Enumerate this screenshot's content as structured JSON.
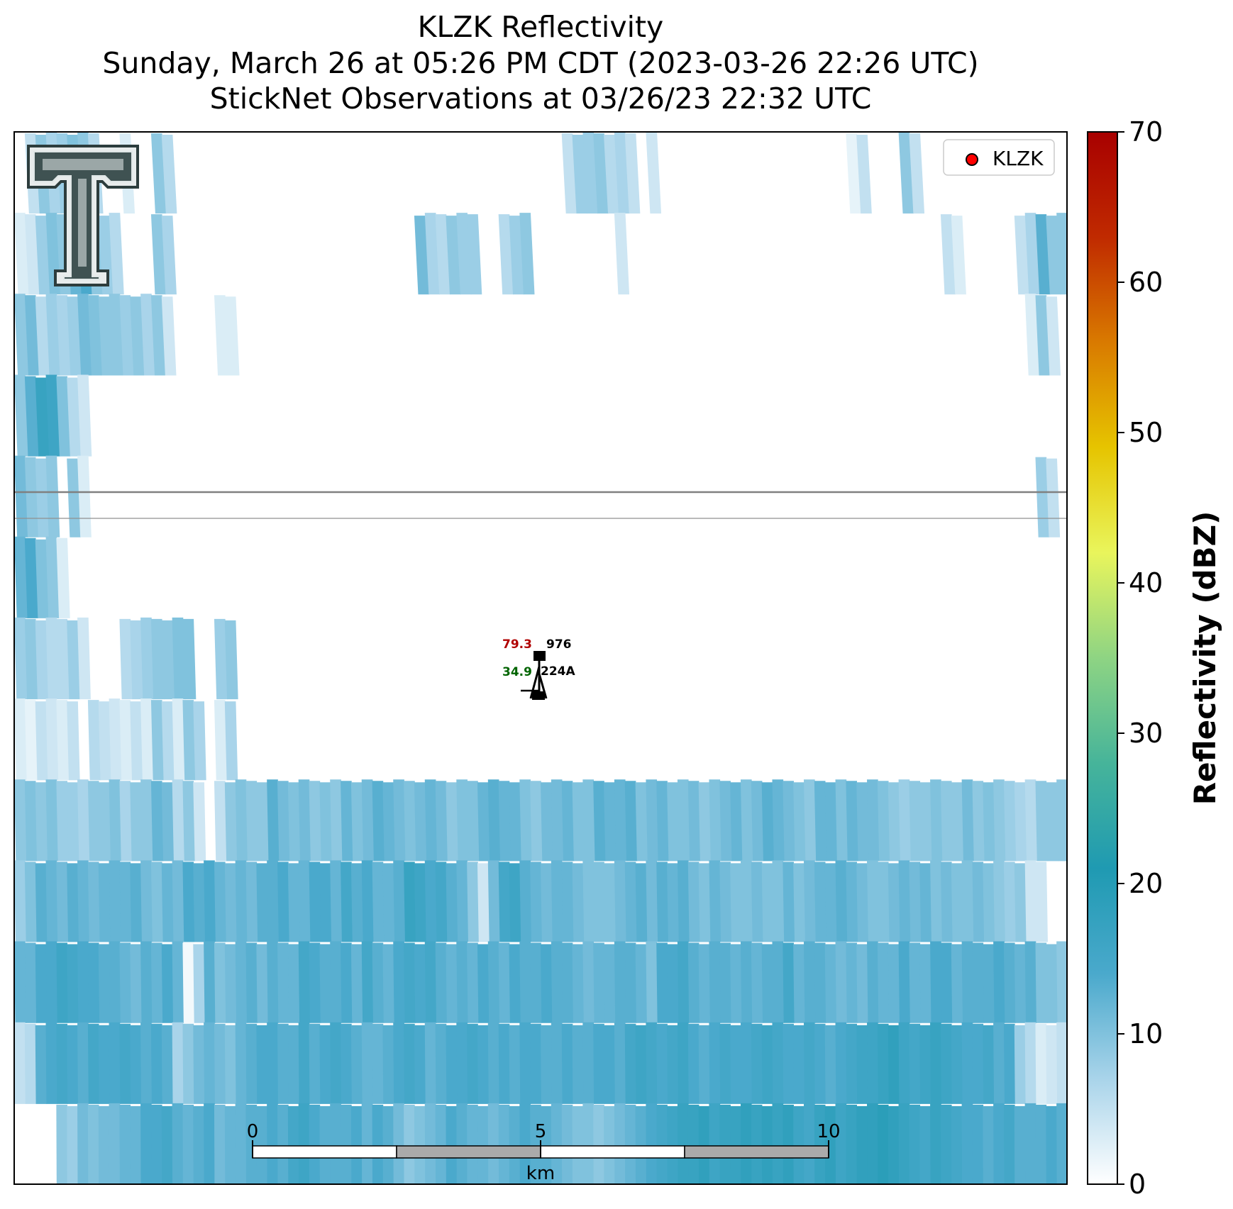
{
  "figure": {
    "title_line1": "KLZK Reflectivity",
    "title_line2": "Sunday, March 26 at 05:26 PM CDT (2023-03-26 22:26 UTC)",
    "title_line3": "StickNet Observations at 03/26/23 22:32 UTC"
  },
  "legend": {
    "label": "KLZK",
    "marker_color": "#ff0000"
  },
  "logo": {
    "name": "texas-tech-double-t-logo"
  },
  "scale_bar": {
    "unit_label": "km",
    "ticks": [
      "0",
      "5",
      "10"
    ]
  },
  "station": {
    "temperature": "79.3",
    "temperature_color": "#b00000",
    "pressure": "976",
    "dewpoint": "34.9",
    "dewpoint_color": "#006400",
    "station_id": "224A"
  },
  "chart_data": {
    "type": "heatmap",
    "title": "KLZK Reflectivity",
    "colorbar": {
      "label": "Reflectivity (dBZ)",
      "range": [
        0,
        70
      ],
      "ticks": [
        "0",
        "10",
        "20",
        "30",
        "40",
        "50",
        "60",
        "70"
      ],
      "colors": [
        "#ffffff",
        "#a9d4ea",
        "#4aa9cc",
        "#1f9ab2",
        "#46b49a",
        "#8ed483",
        "#e9f55c",
        "#e6c400",
        "#d97a00",
        "#c02a00",
        "#a80000"
      ]
    },
    "description_rows_top_to_bottom": "reflectivity field mostly 0-20 dBZ; scattered light echoes in upper half, stronger 8-20 dBZ band across lower third",
    "rows": [
      [
        0,
        5,
        9,
        7,
        8,
        10,
        9,
        6,
        0,
        0,
        3,
        0,
        0,
        9,
        6,
        0,
        0,
        0,
        0,
        0,
        0,
        0,
        0,
        0,
        0,
        0,
        0,
        0,
        0,
        0,
        0,
        0,
        0,
        0,
        0,
        0,
        0,
        0,
        0,
        0,
        0,
        0,
        0,
        0,
        0,
        0,
        0,
        0,
        0,
        0,
        0,
        0,
        5,
        8,
        8,
        9,
        6,
        7,
        5,
        0,
        4,
        0,
        0,
        0,
        0,
        0,
        0,
        0,
        0,
        0,
        0,
        0,
        0,
        0,
        0,
        0,
        0,
        0,
        0,
        2,
        5,
        0,
        0,
        0,
        9,
        5,
        0,
        0,
        0,
        0,
        0,
        0,
        0,
        0,
        0,
        0,
        0,
        0,
        0,
        0
      ],
      [
        3,
        4,
        8,
        10,
        9,
        12,
        14,
        9,
        8,
        6,
        0,
        0,
        0,
        9,
        7,
        0,
        0,
        0,
        0,
        0,
        0,
        0,
        0,
        0,
        0,
        0,
        0,
        0,
        0,
        0,
        0,
        0,
        0,
        0,
        0,
        0,
        0,
        0,
        11,
        7,
        6,
        9,
        8,
        8,
        0,
        0,
        6,
        8,
        9,
        0,
        0,
        0,
        0,
        0,
        0,
        0,
        0,
        4,
        0,
        0,
        0,
        0,
        0,
        0,
        0,
        0,
        0,
        0,
        0,
        0,
        0,
        0,
        0,
        0,
        0,
        0,
        0,
        0,
        0,
        0,
        0,
        0,
        0,
        0,
        0,
        0,
        0,
        0,
        5,
        3,
        0,
        0,
        0,
        0,
        0,
        5,
        7,
        13,
        9,
        9
      ],
      [
        9,
        11,
        6,
        8,
        7,
        8,
        11,
        10,
        9,
        9,
        8,
        9,
        7,
        9,
        4,
        0,
        0,
        0,
        0,
        3,
        3,
        0,
        0,
        0,
        0,
        0,
        0,
        0,
        0,
        0,
        0,
        0,
        0,
        0,
        0,
        0,
        0,
        0,
        0,
        0,
        0,
        0,
        0,
        0,
        0,
        0,
        0,
        0,
        0,
        0,
        0,
        0,
        0,
        0,
        0,
        0,
        0,
        0,
        0,
        0,
        0,
        0,
        0,
        0,
        0,
        0,
        0,
        0,
        0,
        0,
        0,
        0,
        0,
        0,
        0,
        0,
        0,
        0,
        0,
        0,
        0,
        0,
        0,
        0,
        0,
        0,
        0,
        0,
        0,
        0,
        0,
        0,
        0,
        0,
        0,
        0,
        3,
        9,
        4,
        0
      ],
      [
        9,
        13,
        17,
        16,
        10,
        6,
        4,
        0,
        0,
        0,
        0,
        0,
        0,
        0,
        0,
        0,
        0,
        0,
        0,
        0,
        0,
        0,
        0,
        0,
        0,
        0,
        0,
        0,
        0,
        0,
        0,
        0,
        0,
        0,
        0,
        0,
        0,
        0,
        0,
        0,
        0,
        0,
        0,
        0,
        0,
        0,
        0,
        0,
        0,
        0,
        0,
        0,
        0,
        0,
        0,
        0,
        0,
        0,
        0,
        0,
        0,
        0,
        0,
        0,
        0,
        0,
        0,
        0,
        0,
        0,
        0,
        0,
        0,
        0,
        0,
        0,
        0,
        0,
        0,
        0,
        0,
        0,
        0,
        0,
        0,
        0,
        0,
        0,
        0,
        0,
        0,
        0,
        0,
        0,
        0,
        0,
        0,
        0,
        0,
        0
      ],
      [
        11,
        9,
        8,
        9,
        0,
        9,
        3,
        0,
        0,
        0,
        0,
        0,
        0,
        0,
        0,
        0,
        0,
        0,
        0,
        0,
        0,
        0,
        0,
        0,
        0,
        0,
        0,
        0,
        0,
        0,
        0,
        0,
        0,
        0,
        0,
        0,
        0,
        0,
        0,
        0,
        0,
        0,
        0,
        0,
        0,
        0,
        0,
        0,
        0,
        0,
        0,
        0,
        0,
        0,
        0,
        0,
        0,
        0,
        0,
        0,
        0,
        0,
        0,
        0,
        0,
        0,
        0,
        0,
        0,
        0,
        0,
        0,
        0,
        0,
        0,
        0,
        0,
        0,
        0,
        0,
        0,
        0,
        0,
        0,
        0,
        0,
        0,
        0,
        0,
        0,
        0,
        0,
        0,
        0,
        0,
        0,
        0,
        8,
        5,
        0
      ],
      [
        12,
        14,
        10,
        9,
        3,
        0,
        0,
        0,
        0,
        0,
        0,
        0,
        0,
        0,
        0,
        0,
        0,
        0,
        0,
        0,
        0,
        0,
        0,
        0,
        0,
        0,
        0,
        0,
        0,
        0,
        0,
        0,
        0,
        0,
        0,
        0,
        0,
        0,
        0,
        0,
        0,
        0,
        0,
        0,
        0,
        0,
        0,
        0,
        0,
        0,
        0,
        0,
        0,
        0,
        0,
        0,
        0,
        0,
        0,
        0,
        0,
        0,
        0,
        0,
        0,
        0,
        0,
        0,
        0,
        0,
        0,
        0,
        0,
        0,
        0,
        0,
        0,
        0,
        0,
        0,
        0,
        0,
        0,
        0,
        0,
        0,
        0,
        0,
        0,
        0,
        0,
        0,
        0,
        0,
        0,
        0,
        0,
        0,
        0,
        0
      ],
      [
        8,
        9,
        7,
        6,
        6,
        8,
        4,
        0,
        0,
        0,
        6,
        7,
        8,
        9,
        9,
        10,
        10,
        0,
        0,
        8,
        9,
        0,
        0,
        0,
        0,
        0,
        0,
        0,
        0,
        0,
        0,
        0,
        0,
        0,
        0,
        0,
        0,
        0,
        0,
        0,
        0,
        0,
        0,
        0,
        0,
        0,
        0,
        0,
        0,
        0,
        0,
        0,
        0,
        0,
        0,
        0,
        0,
        0,
        0,
        0,
        0,
        0,
        0,
        0,
        0,
        0,
        0,
        0,
        0,
        0,
        0,
        0,
        0,
        0,
        0,
        0,
        0,
        0,
        0,
        0,
        0,
        0,
        0,
        0,
        0,
        0,
        0,
        0,
        0,
        0,
        0,
        0,
        0,
        0,
        0,
        0,
        0,
        0,
        0,
        0
      ],
      [
        3,
        2,
        5,
        4,
        3,
        5,
        0,
        6,
        5,
        4,
        3,
        5,
        3,
        9,
        6,
        3,
        9,
        7,
        0,
        3,
        7,
        0,
        0,
        0,
        0,
        0,
        0,
        0,
        0,
        0,
        0,
        0,
        0,
        0,
        0,
        0,
        0,
        0,
        0,
        0,
        0,
        0,
        0,
        0,
        0,
        0,
        0,
        0,
        0,
        0,
        0,
        0,
        0,
        0,
        0,
        0,
        0,
        0,
        0,
        0,
        0,
        0,
        0,
        0,
        0,
        0,
        0,
        0,
        0,
        0,
        0,
        0,
        0,
        0,
        0,
        0,
        0,
        0,
        0,
        0,
        0,
        0,
        0,
        0,
        0,
        0,
        0,
        0,
        0,
        0,
        0,
        0,
        0,
        0,
        0,
        0,
        0,
        0,
        0,
        0
      ],
      [
        9,
        10,
        9,
        10,
        8,
        8,
        7,
        9,
        9,
        10,
        7,
        9,
        9,
        12,
        11,
        6,
        9,
        4,
        0,
        5,
        9,
        10,
        9,
        9,
        13,
        11,
        10,
        11,
        9,
        10,
        9,
        12,
        10,
        11,
        13,
        12,
        11,
        10,
        11,
        12,
        11,
        9,
        10,
        10,
        12,
        13,
        12,
        12,
        10,
        9,
        11,
        11,
        12,
        10,
        10,
        13,
        12,
        12,
        13,
        10,
        11,
        12,
        10,
        10,
        11,
        9,
        10,
        11,
        12,
        10,
        11,
        13,
        12,
        11,
        10,
        9,
        12,
        12,
        10,
        12,
        11,
        11,
        10,
        9,
        8,
        9,
        9,
        10,
        9,
        9,
        11,
        9,
        10,
        9,
        8,
        7,
        6,
        9,
        9,
        9
      ],
      [
        8,
        10,
        13,
        12,
        11,
        13,
        12,
        11,
        12,
        12,
        12,
        13,
        11,
        10,
        12,
        11,
        14,
        13,
        14,
        12,
        11,
        12,
        11,
        13,
        13,
        14,
        12,
        12,
        14,
        14,
        12,
        15,
        13,
        14,
        12,
        12,
        13,
        17,
        16,
        14,
        15,
        13,
        12,
        9,
        4,
        11,
        15,
        16,
        13,
        12,
        11,
        12,
        12,
        11,
        10,
        10,
        10,
        11,
        12,
        13,
        11,
        13,
        12,
        13,
        11,
        10,
        12,
        11,
        10,
        10,
        11,
        10,
        10,
        12,
        10,
        11,
        12,
        12,
        13,
        12,
        11,
        10,
        10,
        11,
        12,
        11,
        12,
        10,
        11,
        10,
        10,
        11,
        10,
        9,
        8,
        9,
        4,
        4,
        0,
        0
      ],
      [
        12,
        12,
        14,
        14,
        16,
        15,
        14,
        14,
        13,
        13,
        12,
        11,
        13,
        12,
        14,
        12,
        1,
        7,
        13,
        10,
        11,
        12,
        13,
        11,
        13,
        12,
        12,
        15,
        14,
        13,
        13,
        14,
        12,
        15,
        13,
        12,
        14,
        15,
        14,
        15,
        13,
        12,
        13,
        12,
        14,
        13,
        12,
        14,
        13,
        13,
        14,
        13,
        13,
        12,
        11,
        12,
        12,
        13,
        13,
        12,
        10,
        14,
        14,
        15,
        13,
        12,
        13,
        13,
        12,
        13,
        12,
        13,
        13,
        15,
        12,
        13,
        13,
        12,
        11,
        12,
        11,
        13,
        12,
        12,
        14,
        12,
        12,
        14,
        14,
        12,
        13,
        13,
        13,
        14,
        13,
        12,
        13,
        10,
        10,
        9
      ],
      [
        5,
        6,
        13,
        14,
        15,
        14,
        13,
        15,
        14,
        14,
        15,
        14,
        13,
        14,
        13,
        7,
        9,
        11,
        12,
        11,
        10,
        12,
        13,
        14,
        14,
        13,
        13,
        15,
        13,
        14,
        15,
        14,
        13,
        12,
        12,
        13,
        14,
        15,
        14,
        12,
        13,
        14,
        14,
        15,
        14,
        13,
        14,
        13,
        14,
        14,
        13,
        13,
        14,
        13,
        13,
        14,
        14,
        13,
        15,
        16,
        15,
        14,
        15,
        16,
        14,
        13,
        14,
        15,
        14,
        14,
        15,
        16,
        15,
        14,
        14,
        15,
        14,
        13,
        14,
        15,
        16,
        16,
        17,
        18,
        16,
        15,
        16,
        17,
        16,
        15,
        14,
        14,
        15,
        13,
        14,
        8,
        6,
        3,
        4,
        5
      ],
      [
        0,
        0,
        0,
        0,
        9,
        8,
        11,
        10,
        11,
        11,
        12,
        12,
        14,
        14,
        15,
        13,
        12,
        13,
        14,
        11,
        12,
        12,
        13,
        13,
        14,
        13,
        15,
        16,
        14,
        13,
        13,
        13,
        14,
        12,
        14,
        13,
        11,
        9,
        10,
        11,
        12,
        14,
        13,
        12,
        12,
        11,
        12,
        13,
        14,
        13,
        13,
        12,
        11,
        10,
        10,
        9,
        10,
        11,
        12,
        13,
        14,
        15,
        16,
        17,
        17,
        18,
        16,
        17,
        17,
        18,
        17,
        18,
        17,
        18,
        16,
        15,
        17,
        18,
        16,
        17,
        18,
        18,
        19,
        18,
        17,
        16,
        15,
        17,
        16,
        15,
        14,
        14,
        13,
        14,
        15,
        13,
        13,
        13,
        14,
        13
      ]
    ],
    "rows_note": "13 range rows, 100 columns each; values in dBZ read from colorbar; 0 = no echo (white)"
  }
}
